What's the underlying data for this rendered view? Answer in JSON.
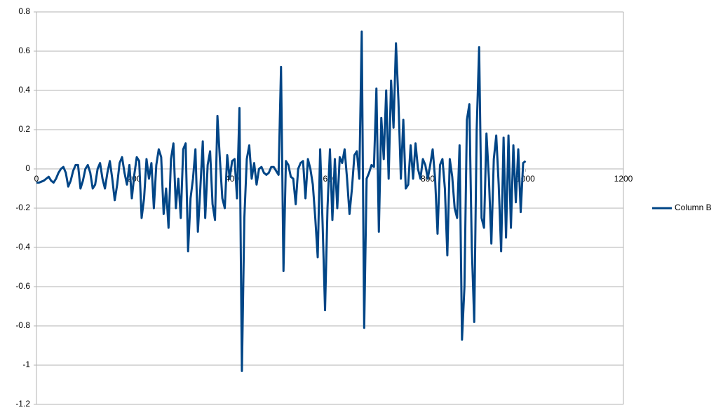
{
  "chart_data": {
    "type": "line",
    "x": [
      0,
      5,
      10,
      15,
      20,
      25,
      30,
      35,
      40,
      45,
      50,
      55,
      60,
      65,
      70,
      75,
      80,
      85,
      90,
      95,
      100,
      105,
      110,
      115,
      120,
      125,
      130,
      135,
      140,
      145,
      150,
      155,
      160,
      165,
      170,
      175,
      180,
      185,
      190,
      195,
      200,
      205,
      210,
      215,
      220,
      225,
      230,
      235,
      240,
      245,
      250,
      255,
      260,
      265,
      270,
      275,
      280,
      285,
      290,
      295,
      300,
      305,
      310,
      315,
      320,
      325,
      330,
      335,
      340,
      345,
      350,
      355,
      360,
      365,
      370,
      375,
      380,
      385,
      390,
      395,
      400,
      405,
      410,
      415,
      420,
      425,
      430,
      435,
      440,
      445,
      450,
      455,
      460,
      465,
      470,
      475,
      480,
      485,
      490,
      495,
      500,
      505,
      510,
      515,
      520,
      525,
      530,
      535,
      540,
      545,
      550,
      555,
      560,
      565,
      570,
      575,
      580,
      585,
      590,
      595,
      600,
      605,
      610,
      615,
      620,
      625,
      630,
      635,
      640,
      645,
      650,
      655,
      660,
      665,
      670,
      675,
      680,
      685,
      690,
      695,
      700,
      705,
      710,
      715,
      720,
      725,
      730,
      735,
      740,
      745,
      750,
      755,
      760,
      765,
      770,
      775,
      780,
      785,
      790,
      795,
      800,
      805,
      810,
      815,
      820,
      825,
      830,
      835,
      840,
      845,
      850,
      855,
      860,
      865,
      870,
      875,
      880,
      885,
      890,
      895,
      900,
      905,
      910,
      915,
      920,
      925,
      930,
      935,
      940,
      945,
      950,
      955,
      960,
      965,
      970,
      975,
      980,
      985,
      990,
      995,
      1000
    ],
    "series": [
      {
        "name": "Column B",
        "color": "#004586",
        "values": [
          -0.07,
          -0.07,
          -0.065,
          -0.06,
          -0.05,
          -0.04,
          -0.06,
          -0.07,
          -0.05,
          -0.02,
          0,
          0.01,
          -0.02,
          -0.09,
          -0.06,
          -0.01,
          0.02,
          0.02,
          -0.1,
          -0.06,
          0,
          0.02,
          -0.02,
          -0.1,
          -0.08,
          0,
          0.03,
          -0.05,
          -0.1,
          -0.02,
          0.04,
          -0.05,
          -0.16,
          -0.08,
          0.03,
          0.06,
          -0.02,
          -0.08,
          0.02,
          -0.15,
          -0.03,
          0.06,
          0.04,
          -0.25,
          -0.15,
          0.05,
          -0.05,
          0.03,
          -0.2,
          0.02,
          0.1,
          0.06,
          -0.23,
          -0.1,
          -0.3,
          0.05,
          0.13,
          -0.2,
          -0.05,
          -0.25,
          0.1,
          0.13,
          -0.42,
          -0.15,
          -0.05,
          0.1,
          -0.32,
          -0.1,
          0.14,
          -0.25,
          0.02,
          0.09,
          -0.18,
          -0.26,
          0.27,
          0.05,
          -0.15,
          -0.2,
          0.07,
          -0.05,
          0.04,
          0.05,
          -0.15,
          0.31,
          -1.03,
          -0.25,
          0.05,
          0.12,
          -0.05,
          0.03,
          -0.08,
          0,
          0.01,
          -0.02,
          -0.03,
          -0.02,
          0.01,
          0.01,
          -0.01,
          -0.03,
          0.52,
          -0.52,
          0.04,
          0.02,
          -0.04,
          -0.05,
          -0.18,
          0,
          0.03,
          0.04,
          -0.15,
          0.05,
          0,
          -0.08,
          -0.25,
          -0.45,
          0.1,
          -0.28,
          -0.72,
          -0.2,
          0.1,
          -0.26,
          0.05,
          -0.2,
          0.06,
          0.03,
          0.1,
          -0.05,
          -0.23,
          -0.1,
          0.07,
          0.09,
          -0.05,
          0.7,
          -0.81,
          -0.05,
          -0.02,
          0.02,
          0.01,
          0.41,
          -0.32,
          0.26,
          0.05,
          0.4,
          -0.05,
          0.45,
          0.21,
          0.64,
          0.35,
          -0.05,
          0.25,
          -0.1,
          -0.08,
          0.12,
          -0.05,
          0.13,
          0,
          -0.05,
          0.05,
          0.02,
          -0.05,
          0.02,
          0.1,
          -0.05,
          -0.33,
          0.02,
          0.05,
          -0.1,
          -0.44,
          0.05,
          -0.04,
          -0.2,
          -0.25,
          0.12,
          -0.87,
          -0.6,
          0.25,
          0.33,
          -0.4,
          -0.78,
          0.2,
          0.62,
          -0.25,
          -0.3,
          0.18,
          -0.05,
          -0.38,
          0.05,
          0.17,
          -0.08,
          -0.42,
          0.16,
          -0.35,
          0.17,
          -0.3,
          0.12,
          -0.17,
          0.1,
          -0.22,
          0.03,
          0.04
        ]
      }
    ],
    "xlim": [
      0,
      1200
    ],
    "xticks": [
      0,
      200,
      400,
      600,
      800,
      1000,
      1200
    ],
    "ylim": [
      -1.2,
      0.8
    ],
    "yticks": [
      -1.2,
      -1,
      -0.8,
      -0.6,
      -0.4,
      -0.2,
      0,
      0.2,
      0.4,
      0.6,
      0.8
    ],
    "grid": true,
    "legend": "right"
  }
}
